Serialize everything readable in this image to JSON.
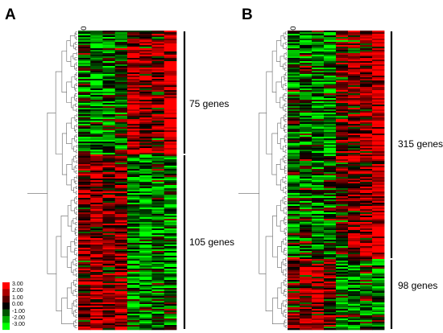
{
  "panels": [
    {
      "letter": "A",
      "columns": [
        "HN_10",
        "HN_1",
        "HN_2",
        "HN_3",
        "LN_5",
        "LN_6",
        "LN_8",
        "LN_9"
      ],
      "groups": [
        {
          "label": "75 genes",
          "pattern": [
            -0.5,
            -0.9,
            -0.7,
            -0.3,
            1.2,
            0.9,
            0.6,
            1.4
          ]
        },
        {
          "label": "105 genes",
          "pattern": [
            0.6,
            1.0,
            0.7,
            0.8,
            -0.9,
            -1.0,
            -0.6,
            -0.8
          ]
        }
      ]
    },
    {
      "letter": "B",
      "columns": [
        "HN_10",
        "HN_1",
        "HN_2",
        "HN_3",
        "LN_5",
        "LN_6",
        "LN_8",
        "LN_9"
      ],
      "groups": [
        {
          "label": "315 genes",
          "pattern": [
            -0.6,
            -0.4,
            -0.7,
            -0.8,
            0.4,
            0.7,
            0.9,
            1.5
          ]
        },
        {
          "label": "98 genes",
          "pattern": [
            0.5,
            0.7,
            1.1,
            0.6,
            -0.6,
            -0.7,
            -0.5,
            -0.7
          ]
        }
      ]
    }
  ],
  "legend": {
    "values": [
      "3.00",
      "2.00",
      "1.00",
      "0.00",
      "-1.00",
      "-2.00",
      "-3.00"
    ],
    "colors": [
      "#ff0000",
      "#aa0000",
      "#550000",
      "#000000",
      "#005500",
      "#00aa00",
      "#00ff00"
    ]
  }
}
